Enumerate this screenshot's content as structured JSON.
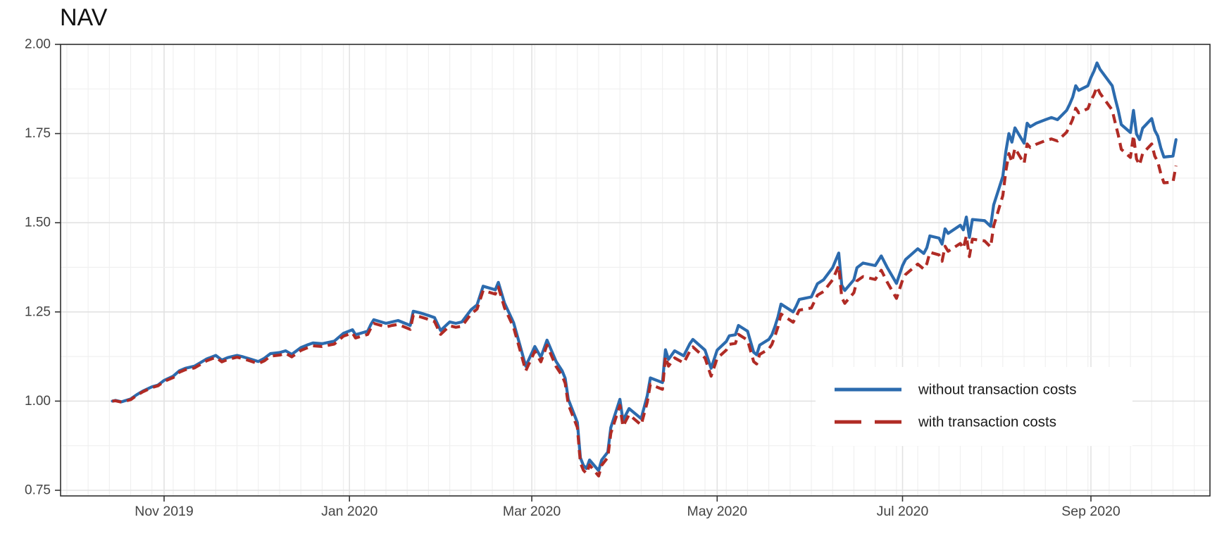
{
  "header": {
    "title": "NAV"
  },
  "colors": {
    "background": "#ffffff",
    "panel_border": "#2f2f2f",
    "grid_major": "#e2e2e2",
    "grid_minor": "#f0f0f0",
    "tick_mark": "#333333",
    "axis_text": "#444444",
    "title_text": "#111111",
    "legend_text": "#1a1a1a",
    "series_without_tc": "#2C6BAE",
    "series_with_tc": "#B02B25"
  },
  "legend": {
    "entries": [
      {
        "label": "without transaction costs",
        "style": "solid",
        "color": "#2C6BAE"
      },
      {
        "label": "with transaction costs",
        "style": "dashed",
        "color": "#B02B25"
      }
    ]
  },
  "chart_data": {
    "type": "line",
    "title": "NAV",
    "xlabel": "",
    "ylabel": "",
    "ylim": [
      0.734,
      2.0
    ],
    "grid": "on",
    "legend_position": "inside bottom-right",
    "y_ticks": [
      {
        "label": "2.00",
        "value": 2.0
      },
      {
        "label": "1.75",
        "value": 1.75
      },
      {
        "label": "1.50",
        "value": 1.5
      },
      {
        "label": "1.25",
        "value": 1.25
      },
      {
        "label": "1.00",
        "value": 1.0
      },
      {
        "label": "0.75",
        "value": 0.75
      }
    ],
    "y_minor": [
      0.875,
      1.125,
      1.375,
      1.625,
      1.875
    ],
    "x_ticks": [
      {
        "label": "Nov 2019",
        "date": "2019-11-01"
      },
      {
        "label": "Jan 2020",
        "date": "2020-01-01"
      },
      {
        "label": "Mar 2020",
        "date": "2020-03-01"
      },
      {
        "label": "May 2020",
        "date": "2020-05-01"
      },
      {
        "label": "Jul 2020",
        "date": "2020-07-01"
      },
      {
        "label": "Sep 2020",
        "date": "2020-09-01"
      }
    ],
    "dates": [
      "2019-10-15",
      "2019-10-16",
      "2019-10-18",
      "2019-10-21",
      "2019-10-23",
      "2019-10-25",
      "2019-10-28",
      "2019-10-30",
      "2019-11-01",
      "2019-11-04",
      "2019-11-06",
      "2019-11-08",
      "2019-11-11",
      "2019-11-13",
      "2019-11-15",
      "2019-11-18",
      "2019-11-20",
      "2019-11-22",
      "2019-11-25",
      "2019-11-27",
      "2019-12-02",
      "2019-12-04",
      "2019-12-06",
      "2019-12-09",
      "2019-12-11",
      "2019-12-13",
      "2019-12-16",
      "2019-12-18",
      "2019-12-20",
      "2019-12-23",
      "2019-12-27",
      "2019-12-30",
      "2020-01-02",
      "2020-01-03",
      "2020-01-07",
      "2020-01-08",
      "2020-01-09",
      "2020-01-13",
      "2020-01-15",
      "2020-01-17",
      "2020-01-21",
      "2020-01-22",
      "2020-01-24",
      "2020-01-27",
      "2020-01-29",
      "2020-01-31",
      "2020-02-03",
      "2020-02-05",
      "2020-02-07",
      "2020-02-10",
      "2020-02-12",
      "2020-02-14",
      "2020-02-18",
      "2020-02-19",
      "2020-02-21",
      "2020-02-24",
      "2020-02-26",
      "2020-02-28",
      "2020-03-02",
      "2020-03-04",
      "2020-03-06",
      "2020-03-09",
      "2020-03-11",
      "2020-03-12",
      "2020-03-13",
      "2020-03-16",
      "2020-03-17",
      "2020-03-18",
      "2020-03-19",
      "2020-03-20",
      "2020-03-23",
      "2020-03-24",
      "2020-03-26",
      "2020-03-27",
      "2020-03-30",
      "2020-03-31",
      "2020-04-02",
      "2020-04-06",
      "2020-04-08",
      "2020-04-09",
      "2020-04-13",
      "2020-04-14",
      "2020-04-15",
      "2020-04-17",
      "2020-04-20",
      "2020-04-22",
      "2020-04-23",
      "2020-04-27",
      "2020-04-29",
      "2020-05-01",
      "2020-05-04",
      "2020-05-05",
      "2020-05-07",
      "2020-05-08",
      "2020-05-11",
      "2020-05-13",
      "2020-05-14",
      "2020-05-15",
      "2020-05-18",
      "2020-05-19",
      "2020-05-20",
      "2020-05-21",
      "2020-05-22",
      "2020-05-26",
      "2020-05-27",
      "2020-05-28",
      "2020-06-01",
      "2020-06-03",
      "2020-06-05",
      "2020-06-08",
      "2020-06-10",
      "2020-06-11",
      "2020-06-12",
      "2020-06-15",
      "2020-06-16",
      "2020-06-18",
      "2020-06-22",
      "2020-06-24",
      "2020-06-26",
      "2020-06-29",
      "2020-07-01",
      "2020-07-02",
      "2020-07-06",
      "2020-07-08",
      "2020-07-09",
      "2020-07-10",
      "2020-07-13",
      "2020-07-14",
      "2020-07-15",
      "2020-07-16",
      "2020-07-20",
      "2020-07-21",
      "2020-07-22",
      "2020-07-23",
      "2020-07-24",
      "2020-07-28",
      "2020-07-30",
      "2020-07-31",
      "2020-08-03",
      "2020-08-04",
      "2020-08-05",
      "2020-08-06",
      "2020-08-07",
      "2020-08-10",
      "2020-08-11",
      "2020-08-12",
      "2020-08-14",
      "2020-08-17",
      "2020-08-19",
      "2020-08-21",
      "2020-08-24",
      "2020-08-25",
      "2020-08-26",
      "2020-08-27",
      "2020-08-28",
      "2020-08-31",
      "2020-09-01",
      "2020-09-02",
      "2020-09-03",
      "2020-09-04",
      "2020-09-08",
      "2020-09-09",
      "2020-09-10",
      "2020-09-11",
      "2020-09-14",
      "2020-09-15",
      "2020-09-16",
      "2020-09-17",
      "2020-09-18",
      "2020-09-21",
      "2020-09-22",
      "2020-09-23",
      "2020-09-24",
      "2020-09-25",
      "2020-09-28",
      "2020-09-29"
    ],
    "series": [
      {
        "name": "without transaction costs",
        "color": "#2C6BAE",
        "dash": false,
        "values": [
          1.0,
          1.002,
          0.998,
          1.006,
          1.018,
          1.028,
          1.04,
          1.045,
          1.058,
          1.07,
          1.085,
          1.092,
          1.098,
          1.108,
          1.118,
          1.128,
          1.115,
          1.122,
          1.128,
          1.124,
          1.111,
          1.12,
          1.133,
          1.136,
          1.141,
          1.131,
          1.15,
          1.157,
          1.163,
          1.161,
          1.168,
          1.19,
          1.2,
          1.186,
          1.196,
          1.214,
          1.228,
          1.218,
          1.222,
          1.226,
          1.212,
          1.252,
          1.248,
          1.24,
          1.234,
          1.198,
          1.222,
          1.218,
          1.222,
          1.256,
          1.27,
          1.322,
          1.312,
          1.333,
          1.275,
          1.22,
          1.16,
          1.098,
          1.153,
          1.123,
          1.171,
          1.111,
          1.085,
          1.064,
          1.005,
          0.94,
          0.841,
          0.82,
          0.811,
          0.835,
          0.805,
          0.835,
          0.857,
          0.926,
          1.005,
          0.946,
          0.979,
          0.951,
          1.015,
          1.065,
          1.052,
          1.144,
          1.117,
          1.141,
          1.127,
          1.161,
          1.173,
          1.143,
          1.092,
          1.143,
          1.167,
          1.183,
          1.186,
          1.212,
          1.196,
          1.137,
          1.13,
          1.157,
          1.173,
          1.186,
          1.209,
          1.236,
          1.272,
          1.25,
          1.266,
          1.285,
          1.292,
          1.329,
          1.34,
          1.374,
          1.415,
          1.325,
          1.31,
          1.34,
          1.374,
          1.387,
          1.38,
          1.407,
          1.374,
          1.33,
          1.38,
          1.397,
          1.427,
          1.414,
          1.43,
          1.463,
          1.457,
          1.44,
          1.483,
          1.47,
          1.493,
          1.48,
          1.516,
          1.459,
          1.509,
          1.506,
          1.49,
          1.55,
          1.63,
          1.7,
          1.75,
          1.726,
          1.766,
          1.723,
          1.779,
          1.769,
          1.779,
          1.789,
          1.795,
          1.789,
          1.815,
          1.832,
          1.852,
          1.884,
          1.871,
          1.884,
          1.907,
          1.925,
          1.948,
          1.93,
          1.884,
          1.848,
          1.815,
          1.775,
          1.753,
          1.815,
          1.749,
          1.733,
          1.765,
          1.792,
          1.759,
          1.743,
          1.71,
          1.684,
          1.687,
          1.733
        ]
      },
      {
        "name": "with transaction costs",
        "color": "#B02B25",
        "dash": true,
        "values": [
          1.0,
          1.001,
          0.997,
          1.004,
          1.016,
          1.026,
          1.038,
          1.043,
          1.055,
          1.066,
          1.081,
          1.088,
          1.093,
          1.103,
          1.113,
          1.123,
          1.11,
          1.117,
          1.123,
          1.119,
          1.105,
          1.113,
          1.126,
          1.129,
          1.134,
          1.124,
          1.142,
          1.149,
          1.155,
          1.153,
          1.16,
          1.182,
          1.191,
          1.177,
          1.187,
          1.204,
          1.218,
          1.208,
          1.212,
          1.215,
          1.201,
          1.241,
          1.237,
          1.229,
          1.223,
          1.187,
          1.211,
          1.207,
          1.21,
          1.244,
          1.258,
          1.31,
          1.3,
          1.32,
          1.262,
          1.207,
          1.147,
          1.085,
          1.14,
          1.11,
          1.157,
          1.097,
          1.071,
          1.05,
          0.991,
          0.926,
          0.827,
          0.806,
          0.797,
          0.821,
          0.79,
          0.82,
          0.842,
          0.91,
          0.988,
          0.929,
          0.962,
          0.933,
          0.997,
          1.047,
          1.033,
          1.125,
          1.098,
          1.121,
          1.107,
          1.14,
          1.152,
          1.121,
          1.07,
          1.12,
          1.143,
          1.159,
          1.162,
          1.187,
          1.171,
          1.111,
          1.104,
          1.131,
          1.146,
          1.159,
          1.182,
          1.208,
          1.244,
          1.221,
          1.237,
          1.255,
          1.261,
          1.297,
          1.307,
          1.34,
          1.38,
          1.29,
          1.274,
          1.304,
          1.337,
          1.349,
          1.341,
          1.367,
          1.333,
          1.288,
          1.339,
          1.355,
          1.384,
          1.37,
          1.385,
          1.417,
          1.41,
          1.392,
          1.434,
          1.42,
          1.442,
          1.428,
          1.463,
          1.405,
          1.454,
          1.449,
          1.432,
          1.491,
          1.576,
          1.645,
          1.694,
          1.67,
          1.709,
          1.666,
          1.721,
          1.711,
          1.72,
          1.73,
          1.735,
          1.729,
          1.754,
          1.771,
          1.79,
          1.821,
          1.808,
          1.82,
          1.842,
          1.859,
          1.881,
          1.863,
          1.816,
          1.78,
          1.746,
          1.706,
          1.683,
          1.745,
          1.679,
          1.662,
          1.694,
          1.721,
          1.687,
          1.671,
          1.638,
          1.612,
          1.614,
          1.66
        ]
      }
    ]
  }
}
